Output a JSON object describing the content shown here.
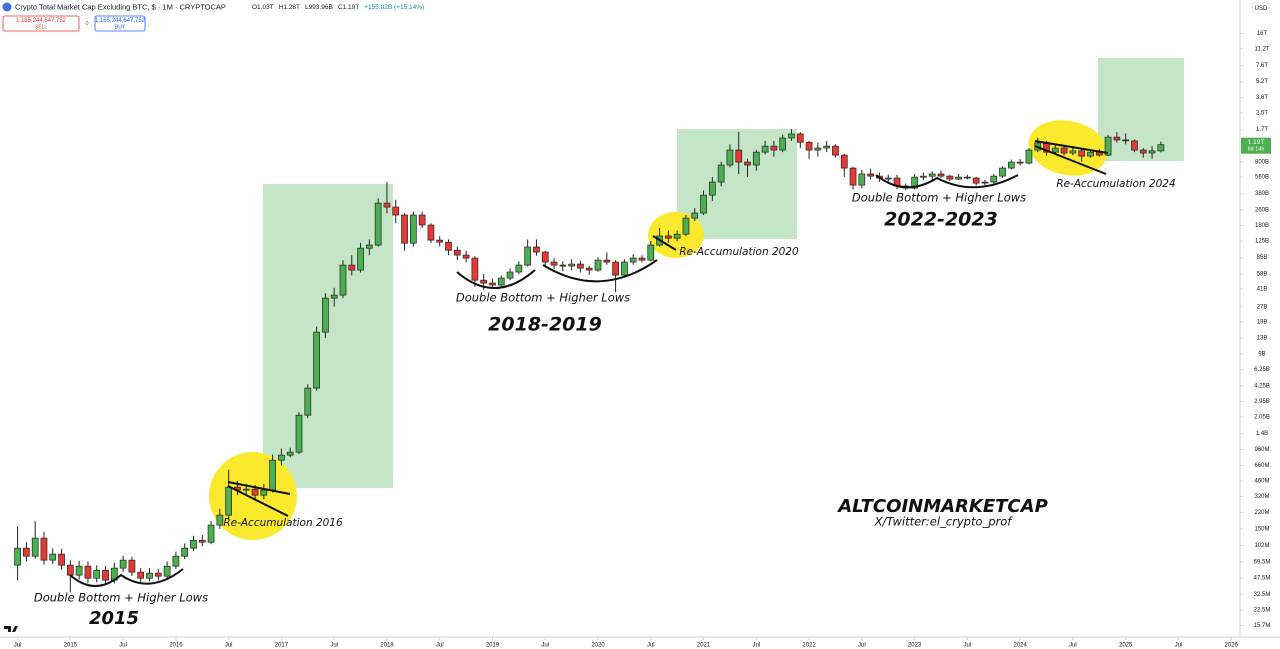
{
  "chart_data": {
    "type": "candlestick",
    "title": "Crypto Total Market Cap Excluding BTC, $ · 1M · CRYPTOCAP",
    "header_stats": [
      "O1.03T",
      "H1.28T",
      "L993.96B",
      "C1.19T",
      "+155.82B (+15.14%)"
    ],
    "trade": {
      "sell_price": "1,185,244,647,752",
      "sell": "SELL",
      "spread": "0",
      "buy_price": "1,185,244,647,752",
      "buy": "BUY"
    },
    "currency": "USD",
    "last_price_label": "1.19T",
    "countdown": "6d 14h",
    "up_color": "#4caf50",
    "down_color": "#e53935",
    "annotations": [
      "Double Bottom + Higher Lows",
      "2015",
      "Re-Accumulation 2016",
      "Double Bottom + Higher Lows",
      "2018-2019",
      "Re-Accumulation 2020",
      "Double Bottom + Higher Lows",
      "2022-2023",
      "Re-Accumulation 2024",
      "ALTCOINMARKETCAP",
      "X/Twitter:el_crypto_prof"
    ],
    "log_scale": true,
    "grid": false,
    "xlim": [
      "2014-05",
      "2026-02"
    ],
    "xticks": [
      {
        "value": "2014-07",
        "label": "Jul"
      },
      {
        "value": "2015-01",
        "label": "2015"
      },
      {
        "value": "2015-07",
        "label": "Jul"
      },
      {
        "value": "2016-01",
        "label": "2016"
      },
      {
        "value": "2016-07",
        "label": "Jul"
      },
      {
        "value": "2017-01",
        "label": "2017"
      },
      {
        "value": "2017-07",
        "label": "Jul"
      },
      {
        "value": "2018-01",
        "label": "2018"
      },
      {
        "value": "2018-07",
        "label": "Jul"
      },
      {
        "value": "2019-01",
        "label": "2019"
      },
      {
        "value": "2019-07",
        "label": "Jul"
      },
      {
        "value": "2020-01",
        "label": "2020"
      },
      {
        "value": "2020-07",
        "label": "Jul"
      },
      {
        "value": "2021-01",
        "label": "2021"
      },
      {
        "value": "2021-07",
        "label": "Jul"
      },
      {
        "value": "2022-01",
        "label": "2022"
      },
      {
        "value": "2022-07",
        "label": "Jul"
      },
      {
        "value": "2023-01",
        "label": "2023"
      },
      {
        "value": "2023-07",
        "label": "Jul"
      },
      {
        "value": "2024-01",
        "label": "2024"
      },
      {
        "value": "2024-07",
        "label": "Jul"
      },
      {
        "value": "2025-01",
        "label": "2025"
      },
      {
        "value": "2025-07",
        "label": "Jul"
      },
      {
        "value": "2026-01",
        "label": "2026"
      }
    ],
    "ylim": [
      12000000,
      35000000000000
    ],
    "yticks": [
      {
        "value": 16000000000000.0,
        "label": "16T"
      },
      {
        "value": 11200000000000.0,
        "label": "11.2T"
      },
      {
        "value": 7600000000000.0,
        "label": "7.6T"
      },
      {
        "value": 5200000000000.0,
        "label": "5.2T"
      },
      {
        "value": 3600000000000.0,
        "label": "3.6T"
      },
      {
        "value": 2500000000000.0,
        "label": "2.5T"
      },
      {
        "value": 1700000000000.0,
        "label": "1.7T"
      },
      {
        "value": 800000000000.0,
        "label": "800B"
      },
      {
        "value": 560000000000.0,
        "label": "560B"
      },
      {
        "value": 380000000000.0,
        "label": "380B"
      },
      {
        "value": 260000000000.0,
        "label": "260B"
      },
      {
        "value": 180000000000.0,
        "label": "180B"
      },
      {
        "value": 125000000000.0,
        "label": "125B"
      },
      {
        "value": 85000000000.0,
        "label": "85B"
      },
      {
        "value": 58000000000.0,
        "label": "58B"
      },
      {
        "value": 41000000000.0,
        "label": "41B"
      },
      {
        "value": 27000000000.0,
        "label": "27B"
      },
      {
        "value": 19000000000.0,
        "label": "19B"
      },
      {
        "value": 13000000000.0,
        "label": "13B"
      },
      {
        "value": 9000000000.0,
        "label": "9B"
      },
      {
        "value": 6250000000.0,
        "label": "6.25B"
      },
      {
        "value": 4250000000.0,
        "label": "4.25B"
      },
      {
        "value": 2950000000.0,
        "label": "2.95B"
      },
      {
        "value": 2050000000.0,
        "label": "2.05B"
      },
      {
        "value": 1400000000.0,
        "label": "1.4B"
      },
      {
        "value": 960000000.0,
        "label": "960M"
      },
      {
        "value": 660000000.0,
        "label": "660M"
      },
      {
        "value": 460000000.0,
        "label": "460M"
      },
      {
        "value": 320000000.0,
        "label": "320M"
      },
      {
        "value": 220000000.0,
        "label": "220M"
      },
      {
        "value": 150000000.0,
        "label": "150M"
      },
      {
        "value": 102000000.0,
        "label": "102M"
      },
      {
        "value": 69500000.0,
        "label": "69.5M"
      },
      {
        "value": 47500000.0,
        "label": "47.5M"
      },
      {
        "value": 32500000.0,
        "label": "32.5M"
      },
      {
        "value": 22500000.0,
        "label": "22.5M"
      },
      {
        "value": 15700000.0,
        "label": "15.7M"
      }
    ],
    "x": [
      "2014-07",
      "2014-08",
      "2014-09",
      "2014-10",
      "2014-11",
      "2014-12",
      "2015-01",
      "2015-02",
      "2015-03",
      "2015-04",
      "2015-05",
      "2015-06",
      "2015-07",
      "2015-08",
      "2015-09",
      "2015-10",
      "2015-11",
      "2015-12",
      "2016-01",
      "2016-02",
      "2016-03",
      "2016-04",
      "2016-05",
      "2016-06",
      "2016-07",
      "2016-08",
      "2016-09",
      "2016-10",
      "2016-11",
      "2016-12",
      "2017-01",
      "2017-02",
      "2017-03",
      "2017-04",
      "2017-05",
      "2017-06",
      "2017-07",
      "2017-08",
      "2017-09",
      "2017-10",
      "2017-11",
      "2017-12",
      "2018-01",
      "2018-02",
      "2018-03",
      "2018-04",
      "2018-05",
      "2018-06",
      "2018-07",
      "2018-08",
      "2018-09",
      "2018-10",
      "2018-11",
      "2018-12",
      "2019-01",
      "2019-02",
      "2019-03",
      "2019-04",
      "2019-05",
      "2019-06",
      "2019-07",
      "2019-08",
      "2019-09",
      "2019-10",
      "2019-11",
      "2019-12",
      "2020-01",
      "2020-02",
      "2020-03",
      "2020-04",
      "2020-05",
      "2020-06",
      "2020-07",
      "2020-08",
      "2020-09",
      "2020-10",
      "2020-11",
      "2020-12",
      "2021-01",
      "2021-02",
      "2021-03",
      "2021-04",
      "2021-05",
      "2021-06",
      "2021-07",
      "2021-08",
      "2021-09",
      "2021-10",
      "2021-11",
      "2021-12",
      "2022-01",
      "2022-02",
      "2022-03",
      "2022-04",
      "2022-05",
      "2022-06",
      "2022-07",
      "2022-08",
      "2022-09",
      "2022-10",
      "2022-11",
      "2022-12",
      "2023-01",
      "2023-02",
      "2023-03",
      "2023-04",
      "2023-05",
      "2023-06",
      "2023-07",
      "2023-08",
      "2023-09",
      "2023-10",
      "2023-11",
      "2023-12",
      "2024-01",
      "2024-02",
      "2024-03",
      "2024-04",
      "2024-05",
      "2024-06",
      "2024-07",
      "2024-08",
      "2024-09",
      "2024-10",
      "2024-11",
      "2024-12",
      "2025-01",
      "2025-02",
      "2025-03",
      "2025-04",
      "2025-05"
    ],
    "open": [
      64300000.0,
      95700000.0,
      79300000.0,
      121000000.0,
      72300000.0,
      83200000.0,
      64300000.0,
      50900000.0,
      62800000.0,
      47400000.0,
      57100000.0,
      45300000.0,
      60000000.0,
      72300000.0,
      54600000.0,
      47400000.0,
      53300000.0,
      49700000.0,
      62800000.0,
      79300000.0,
      95700000.0,
      115000000.0,
      110000000.0,
      164000000.0,
      207000000.0,
      398000000.0,
      372000000.0,
      380000000.0,
      330000000.0,
      372000000.0,
      748000000.0,
      841000000.0,
      902000000.0,
      2140000000.0,
      4030000000.0,
      14900000000.0,
      33000000000.0,
      35400000000.0,
      71400000000.0,
      63500000000.0,
      106000000000.0,
      114000000000.0,
      304000000000.0,
      277000000000.0,
      230000000000.0,
      119000000000.0,
      230000000000.0,
      182000000000.0,
      128000000000.0,
      122000000000.0,
      101000000000.0,
      90200000000.0,
      84100000000.0,
      50200000000.0,
      46900000000.0,
      44800000000.0,
      52700000000.0,
      60700000000.0,
      71400000000.0,
      109000000000.0,
      96800000000.0,
      76600000000.0,
      71400000000.0,
      69800000000.0,
      73100000000.0,
      66500000000.0,
      63500000000.0,
      80200000000.0,
      76600000000.0,
      56500000000.0,
      76600000000.0,
      84100000000.0,
      80200000000.0,
      114000000000.0,
      141000000000.0,
      134000000000.0,
      147000000000.0,
      214000000000.0,
      241000000000.0,
      366000000000.0,
      497000000000.0,
      740000000000.0,
      1050000000000.0,
      793000000000.0,
      740000000000.0,
      1000000000000.0,
      1150000000000.0,
      1050000000000.0,
      1390000000000.0,
      1530000000000.0,
      1260000000000.0,
      1050000000000.0,
      1100000000000.0,
      1150000000000.0,
      933000000000.0,
      689000000000.0,
      463000000000.0,
      600000000000.0,
      571000000000.0,
      546000000000.0,
      546000000000.0,
      453000000000.0,
      432000000000.0,
      558000000000.0,
      570000000000.0,
      600000000000.0,
      571000000000.0,
      533000000000.0,
      558000000000.0,
      546000000000.0,
      485000000000.0,
      497000000000.0,
      571000000000.0,
      689000000000.0,
      793000000000.0,
      774000000000.0,
      1050000000000.0,
      1240000000000.0,
      1000000000000.0,
      1100000000000.0,
      979000000000.0,
      1030000000000.0,
      912000000000.0,
      1000000000000.0,
      933000000000.0,
      1420000000000.0,
      1330000000000.0,
      1300000000000.0,
      1050000000000.0,
      979000000000.0,
      1030000000000.0
    ],
    "high": [
      160000000.0,
      110000000.0,
      180000000.0,
      140000000.0,
      95000000.0,
      94000000.0,
      72000000.0,
      71000000.0,
      70000000.0,
      64000000.0,
      63000000.0,
      68000000.0,
      80000000.0,
      78000000.0,
      60000000.0,
      60000000.0,
      59000000.0,
      70000000.0,
      88000000.0,
      107000000.0,
      128000000.0,
      130000000.0,
      180000000.0,
      240000000.0,
      600000000.0,
      460000000.0,
      430000000.0,
      420000000.0,
      430000000.0,
      850000000.0,
      980000000.0,
      1000000000.0,
      2300000000.0,
      4400000000.0,
      17000000000.0,
      37000000000.0,
      42000000000.0,
      80000000000.0,
      90000000000.0,
      120000000000.0,
      130000000000.0,
      340000000000.0,
      500000000000.0,
      330000000000.0,
      240000000000.0,
      250000000000.0,
      250000000000.0,
      190000000000.0,
      140000000000.0,
      130000000000.0,
      110000000000.0,
      100000000000.0,
      88000000000.0,
      58000000000.0,
      52000000000.0,
      56000000000.0,
      66000000000.0,
      78000000000.0,
      130000000000.0,
      130000000000.0,
      100000000000.0,
      84000000000.0,
      78000000000.0,
      82000000000.0,
      79000000000.0,
      70000000000.0,
      86000000000.0,
      96000000000.0,
      80000000000.0,
      82000000000.0,
      92000000000.0,
      90000000000.0,
      125000000000.0,
      170000000000.0,
      160000000000.0,
      160000000000.0,
      230000000000.0,
      270000000000.0,
      410000000000.0,
      560000000000.0,
      800000000000.0,
      1200000000000.0,
      1600000000000.0,
      860000000000.0,
      1050000000000.0,
      1300000000000.0,
      1300000000000.0,
      1500000000000.0,
      1700000000000.0,
      1600000000000.0,
      1300000000000.0,
      1250000000000.0,
      1300000000000.0,
      1200000000000.0,
      960000000000.0,
      710000000000.0,
      660000000000.0,
      680000000000.0,
      620000000000.0,
      590000000000.0,
      590000000000.0,
      480000000000.0,
      600000000000.0,
      620000000000.0,
      640000000000.0,
      650000000000.0,
      590000000000.0,
      600000000000.0,
      590000000000.0,
      560000000000.0,
      520000000000.0,
      600000000000.0,
      720000000000.0,
      840000000000.0,
      850000000000.0,
      1100000000000.0,
      1400000000000.0,
      1300000000000.0,
      1200000000000.0,
      1150000000000.0,
      1150000000000.0,
      1100000000000.0,
      1050000000000.0,
      1070000000000.0,
      1500000000000.0,
      1600000000000.0,
      1550000000000.0,
      1350000000000.0,
      1100000000000.0,
      1150000000000.0,
      1280000000000.0
    ],
    "low": [
      45000000.0,
      70000000.0,
      75000000.0,
      65000000.0,
      66000000.0,
      58000000.0,
      34000000.0,
      46000000.0,
      42000000.0,
      43000000.0,
      41000000.0,
      42000000.0,
      55000000.0,
      50000000.0,
      43000000.0,
      44000000.0,
      45000000.0,
      46000000.0,
      59000000.0,
      74000000.0,
      90000000.0,
      100000000.0,
      105000000.0,
      150000000.0,
      190000000.0,
      330000000.0,
      330000000.0,
      290000000.0,
      300000000.0,
      350000000.0,
      660000000.0,
      800000000.0,
      860000000.0,
      2000000000.0,
      3800000000.0,
      13000000000.0,
      27000000000.0,
      33000000000.0,
      56000000000.0,
      60000000000.0,
      90000000000.0,
      110000000000.0,
      240000000000.0,
      190000000000.0,
      100000000000.0,
      110000000000.0,
      170000000000.0,
      120000000000.0,
      110000000000.0,
      90000000000.0,
      80000000000.0,
      76000000000.0,
      43000000000.0,
      40000000000.0,
      41000000000.0,
      42000000000.0,
      50000000000.0,
      58000000000.0,
      69000000000.0,
      89000000000.0,
      70000000000.0,
      65000000000.0,
      62000000000.0,
      63000000000.0,
      60000000000.0,
      57000000000.0,
      61000000000.0,
      72000000000.0,
      38000000000.0,
      53000000000.0,
      72000000000.0,
      76000000000.0,
      78000000000.0,
      110000000000.0,
      120000000000.0,
      125000000000.0,
      140000000000.0,
      200000000000.0,
      230000000000.0,
      320000000000.0,
      450000000000.0,
      700000000000.0,
      600000000000.0,
      560000000000.0,
      650000000000.0,
      950000000000.0,
      900000000000.0,
      1000000000000.0,
      1300000000000.0,
      1100000000000.0,
      850000000000.0,
      900000000000.0,
      1000000000000.0,
      880000000000.0,
      560000000000.0,
      420000000000.0,
      430000000000.0,
      530000000000.0,
      500000000000.0,
      500000000000.0,
      420000000000.0,
      410000000000.0,
      420000000000.0,
      520000000000.0,
      510000000000.0,
      550000000000.0,
      510000000000.0,
      520000000000.0,
      530000000000.0,
      460000000000.0,
      460000000000.0,
      480000000000.0,
      550000000000.0,
      670000000000.0,
      730000000000.0,
      750000000000.0,
      1000000000000.0,
      920000000000.0,
      960000000000.0,
      930000000000.0,
      930000000000.0,
      800000000000.0,
      880000000000.0,
      900000000000.0,
      910000000000.0,
      1250000000000.0,
      1200000000000.0,
      1000000000000.0,
      880000000000.0,
      860000000000.0,
      994000000000.0
    ],
    "close": [
      95700000.0,
      79300000.0,
      121000000.0,
      72300000.0,
      83200000.0,
      64300000.0,
      50900000.0,
      62800000.0,
      47400000.0,
      57100000.0,
      45300000.0,
      60000000.0,
      72300000.0,
      54600000.0,
      47400000.0,
      53300000.0,
      49700000.0,
      62800000.0,
      79300000.0,
      95700000.0,
      115000000.0,
      110000000.0,
      164000000.0,
      207000000.0,
      398000000.0,
      372000000.0,
      380000000.0,
      330000000.0,
      372000000.0,
      748000000.0,
      841000000.0,
      902000000.0,
      2140000000.0,
      4030000000.0,
      14900000000.0,
      33000000000.0,
      35400000000.0,
      71400000000.0,
      63500000000.0,
      106000000000.0,
      114000000000.0,
      304000000000.0,
      277000000000.0,
      230000000000.0,
      119000000000.0,
      230000000000.0,
      182000000000.0,
      128000000000.0,
      122000000000.0,
      101000000000.0,
      90200000000.0,
      84100000000.0,
      50200000000.0,
      46900000000.0,
      44800000000.0,
      52700000000.0,
      60700000000.0,
      71400000000.0,
      109000000000.0,
      96800000000.0,
      76600000000.0,
      71400000000.0,
      69800000000.0,
      73100000000.0,
      66500000000.0,
      63500000000.0,
      80200000000.0,
      76600000000.0,
      56500000000.0,
      76600000000.0,
      84100000000.0,
      80200000000.0,
      114000000000.0,
      141000000000.0,
      134000000000.0,
      147000000000.0,
      214000000000.0,
      241000000000.0,
      366000000000.0,
      497000000000.0,
      740000000000.0,
      1050000000000.0,
      793000000000.0,
      740000000000.0,
      1000000000000.0,
      1150000000000.0,
      1050000000000.0,
      1390000000000.0,
      1530000000000.0,
      1260000000000.0,
      1050000000000.0,
      1100000000000.0,
      1150000000000.0,
      933000000000.0,
      689000000000.0,
      463000000000.0,
      600000000000.0,
      571000000000.0,
      546000000000.0,
      546000000000.0,
      453000000000.0,
      432000000000.0,
      558000000000.0,
      570000000000.0,
      600000000000.0,
      571000000000.0,
      533000000000.0,
      558000000000.0,
      546000000000.0,
      485000000000.0,
      497000000000.0,
      571000000000.0,
      689000000000.0,
      793000000000.0,
      774000000000.0,
      1050000000000.0,
      1240000000000.0,
      1000000000000.0,
      1100000000000.0,
      979000000000.0,
      1030000000000.0,
      912000000000.0,
      1000000000000.0,
      933000000000.0,
      1420000000000.0,
      1330000000000.0,
      1300000000000.0,
      1050000000000.0,
      979000000000.0,
      1030000000000.0,
      1190000000000.0
    ]
  }
}
